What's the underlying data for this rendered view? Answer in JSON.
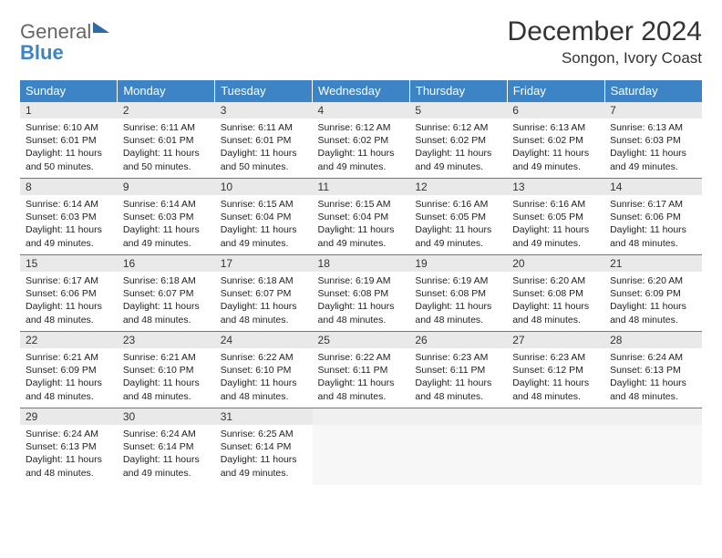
{
  "logo": {
    "word1": "General",
    "word2": "Blue"
  },
  "title": "December 2024",
  "location": "Songon, Ivory Coast",
  "colors": {
    "header_bg": "#3d84c6",
    "header_text": "#ffffff",
    "daynum_bg": "#e9e9e9",
    "border": "#3d84c6",
    "empty_bg": "#f7f7f7"
  },
  "weekdays": [
    "Sunday",
    "Monday",
    "Tuesday",
    "Wednesday",
    "Thursday",
    "Friday",
    "Saturday"
  ],
  "days": [
    {
      "n": "1",
      "sunrise": "6:10 AM",
      "sunset": "6:01 PM",
      "daylight": "11 hours and 50 minutes."
    },
    {
      "n": "2",
      "sunrise": "6:11 AM",
      "sunset": "6:01 PM",
      "daylight": "11 hours and 50 minutes."
    },
    {
      "n": "3",
      "sunrise": "6:11 AM",
      "sunset": "6:01 PM",
      "daylight": "11 hours and 50 minutes."
    },
    {
      "n": "4",
      "sunrise": "6:12 AM",
      "sunset": "6:02 PM",
      "daylight": "11 hours and 49 minutes."
    },
    {
      "n": "5",
      "sunrise": "6:12 AM",
      "sunset": "6:02 PM",
      "daylight": "11 hours and 49 minutes."
    },
    {
      "n": "6",
      "sunrise": "6:13 AM",
      "sunset": "6:02 PM",
      "daylight": "11 hours and 49 minutes."
    },
    {
      "n": "7",
      "sunrise": "6:13 AM",
      "sunset": "6:03 PM",
      "daylight": "11 hours and 49 minutes."
    },
    {
      "n": "8",
      "sunrise": "6:14 AM",
      "sunset": "6:03 PM",
      "daylight": "11 hours and 49 minutes."
    },
    {
      "n": "9",
      "sunrise": "6:14 AM",
      "sunset": "6:03 PM",
      "daylight": "11 hours and 49 minutes."
    },
    {
      "n": "10",
      "sunrise": "6:15 AM",
      "sunset": "6:04 PM",
      "daylight": "11 hours and 49 minutes."
    },
    {
      "n": "11",
      "sunrise": "6:15 AM",
      "sunset": "6:04 PM",
      "daylight": "11 hours and 49 minutes."
    },
    {
      "n": "12",
      "sunrise": "6:16 AM",
      "sunset": "6:05 PM",
      "daylight": "11 hours and 49 minutes."
    },
    {
      "n": "13",
      "sunrise": "6:16 AM",
      "sunset": "6:05 PM",
      "daylight": "11 hours and 49 minutes."
    },
    {
      "n": "14",
      "sunrise": "6:17 AM",
      "sunset": "6:06 PM",
      "daylight": "11 hours and 48 minutes."
    },
    {
      "n": "15",
      "sunrise": "6:17 AM",
      "sunset": "6:06 PM",
      "daylight": "11 hours and 48 minutes."
    },
    {
      "n": "16",
      "sunrise": "6:18 AM",
      "sunset": "6:07 PM",
      "daylight": "11 hours and 48 minutes."
    },
    {
      "n": "17",
      "sunrise": "6:18 AM",
      "sunset": "6:07 PM",
      "daylight": "11 hours and 48 minutes."
    },
    {
      "n": "18",
      "sunrise": "6:19 AM",
      "sunset": "6:08 PM",
      "daylight": "11 hours and 48 minutes."
    },
    {
      "n": "19",
      "sunrise": "6:19 AM",
      "sunset": "6:08 PM",
      "daylight": "11 hours and 48 minutes."
    },
    {
      "n": "20",
      "sunrise": "6:20 AM",
      "sunset": "6:08 PM",
      "daylight": "11 hours and 48 minutes."
    },
    {
      "n": "21",
      "sunrise": "6:20 AM",
      "sunset": "6:09 PM",
      "daylight": "11 hours and 48 minutes."
    },
    {
      "n": "22",
      "sunrise": "6:21 AM",
      "sunset": "6:09 PM",
      "daylight": "11 hours and 48 minutes."
    },
    {
      "n": "23",
      "sunrise": "6:21 AM",
      "sunset": "6:10 PM",
      "daylight": "11 hours and 48 minutes."
    },
    {
      "n": "24",
      "sunrise": "6:22 AM",
      "sunset": "6:10 PM",
      "daylight": "11 hours and 48 minutes."
    },
    {
      "n": "25",
      "sunrise": "6:22 AM",
      "sunset": "6:11 PM",
      "daylight": "11 hours and 48 minutes."
    },
    {
      "n": "26",
      "sunrise": "6:23 AM",
      "sunset": "6:11 PM",
      "daylight": "11 hours and 48 minutes."
    },
    {
      "n": "27",
      "sunrise": "6:23 AM",
      "sunset": "6:12 PM",
      "daylight": "11 hours and 48 minutes."
    },
    {
      "n": "28",
      "sunrise": "6:24 AM",
      "sunset": "6:13 PM",
      "daylight": "11 hours and 48 minutes."
    },
    {
      "n": "29",
      "sunrise": "6:24 AM",
      "sunset": "6:13 PM",
      "daylight": "11 hours and 48 minutes."
    },
    {
      "n": "30",
      "sunrise": "6:24 AM",
      "sunset": "6:14 PM",
      "daylight": "11 hours and 49 minutes."
    },
    {
      "n": "31",
      "sunrise": "6:25 AM",
      "sunset": "6:14 PM",
      "daylight": "11 hours and 49 minutes."
    }
  ],
  "labels": {
    "sunrise": "Sunrise:",
    "sunset": "Sunset:",
    "daylight": "Daylight:"
  },
  "layout": {
    "start_weekday": 0,
    "total_cells": 35
  }
}
